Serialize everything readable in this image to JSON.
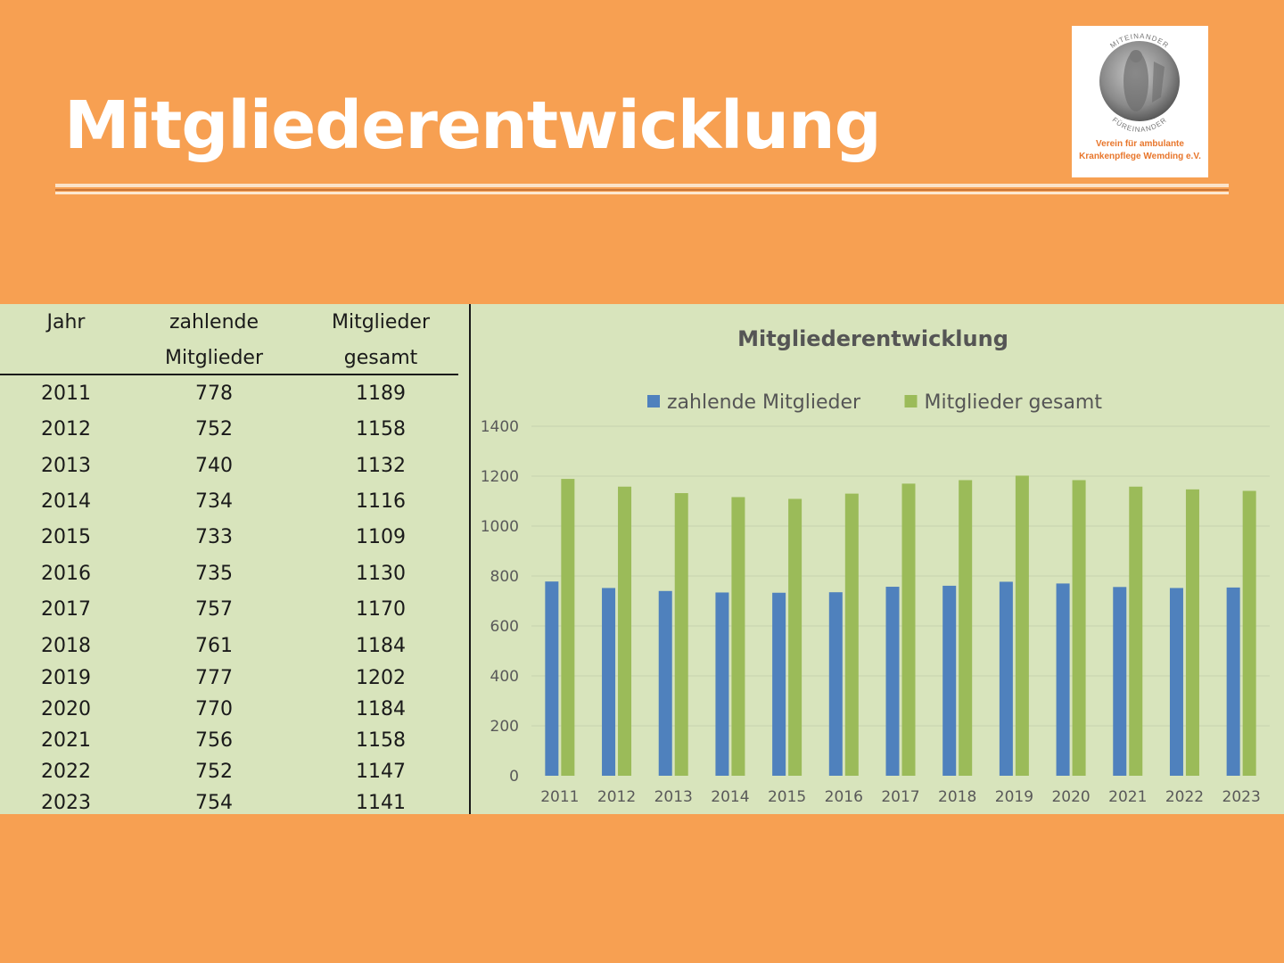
{
  "slide": {
    "title": "Mitgliederentwicklung",
    "logo_text": "Verein für ambulante Krankenpflege Wemding e.V.",
    "logo_caption_lines": [
      "Verein für ambulante",
      "Krankenpflege Wemding e.V."
    ],
    "logo_arc_top": "MITEINANDER",
    "logo_arc_bottom": "FÜREINANDER"
  },
  "colors": {
    "background": "#f7a052",
    "panel": "#d8e4bc",
    "series_paying": "#4f81bd",
    "series_total": "#9bbb59",
    "logo_text": "#e8762b"
  },
  "table": {
    "headers": [
      [
        "Jahr",
        ""
      ],
      [
        "zahlende",
        "Mitglieder"
      ],
      [
        "Mitglieder",
        "gesamt"
      ]
    ],
    "rows": [
      [
        "2011",
        "778",
        "1189"
      ],
      [
        "2012",
        "752",
        "1158"
      ],
      [
        "2013",
        "740",
        "1132"
      ],
      [
        "2014",
        "734",
        "1116"
      ],
      [
        "2015",
        "733",
        "1109"
      ],
      [
        "2016",
        "735",
        "1130"
      ],
      [
        "2017",
        "757",
        "1170"
      ],
      [
        "2018",
        "761",
        "1184"
      ],
      [
        "2019",
        "777",
        "1202"
      ],
      [
        "2020",
        "770",
        "1184"
      ],
      [
        "2021",
        "756",
        "1158"
      ],
      [
        "2022",
        "752",
        "1147"
      ],
      [
        "2023",
        "754",
        "1141"
      ]
    ]
  },
  "chart_data": {
    "type": "bar",
    "title": "Mitgliederentwicklung",
    "categories": [
      "2011",
      "2012",
      "2013",
      "2014",
      "2015",
      "2016",
      "2017",
      "2018",
      "2019",
      "2020",
      "2021",
      "2022",
      "2023"
    ],
    "series": [
      {
        "name": "zahlende Mitglieder",
        "color": "#4f81bd",
        "values": [
          778,
          752,
          740,
          734,
          733,
          735,
          757,
          761,
          777,
          770,
          756,
          752,
          754
        ]
      },
      {
        "name": "Mitglieder gesamt",
        "color": "#9bbb59",
        "values": [
          1189,
          1158,
          1132,
          1116,
          1109,
          1130,
          1170,
          1184,
          1202,
          1184,
          1158,
          1147,
          1141
        ]
      }
    ],
    "ylim": [
      0,
      1400
    ],
    "yticks": [
      "0",
      "200",
      "400",
      "600",
      "800",
      "1000",
      "1200",
      "1400"
    ],
    "grid": true,
    "legend": "top"
  }
}
